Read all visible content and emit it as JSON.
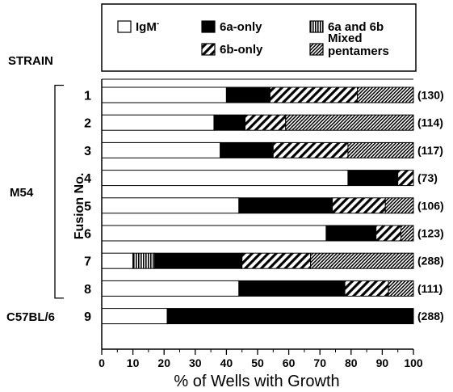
{
  "chart_data": {
    "type": "bar",
    "orientation": "horizontal",
    "stacked": true,
    "title": "",
    "xlabel": "% of Wells with Growth",
    "ylabel": "Fusion No.",
    "xlim": [
      0,
      100
    ],
    "xticks": [
      0,
      10,
      20,
      30,
      40,
      50,
      60,
      70,
      80,
      90,
      100
    ],
    "grid": false,
    "legend_position": "top",
    "strain_header": "STRAIN",
    "groups": [
      {
        "label": "M54",
        "rows": [
          "1",
          "2",
          "3",
          "4",
          "5",
          "6",
          "7",
          "8"
        ]
      },
      {
        "label": "C57BL/6",
        "rows": [
          "9"
        ]
      }
    ],
    "categories": [
      "1",
      "2",
      "3",
      "4",
      "5",
      "6",
      "7",
      "8",
      "9"
    ],
    "counts": [
      "(130)",
      "(114)",
      "(117)",
      "(73)",
      "(106)",
      "(123)",
      "(288)",
      "(111)",
      "(288)"
    ],
    "series": [
      {
        "name": "IgM",
        "superscript": "-",
        "pattern": "white",
        "values": [
          40,
          36,
          38,
          79,
          44,
          72,
          10,
          44,
          21
        ]
      },
      {
        "name": "6a and 6b",
        "pattern": "vertical",
        "values": [
          0,
          0,
          0,
          0,
          0,
          0,
          7,
          0,
          0
        ]
      },
      {
        "name": "6a-only",
        "pattern": "black",
        "values": [
          14,
          10,
          17,
          16,
          30,
          16,
          28,
          34,
          79
        ]
      },
      {
        "name": "6b-only",
        "pattern": "diagonal-wide",
        "values": [
          28,
          13,
          24,
          5,
          17,
          8,
          22,
          14,
          0
        ]
      },
      {
        "name": "Mixed pentamers",
        "pattern": "diagonal-dense",
        "values": [
          18,
          41,
          21,
          0,
          9,
          4,
          33,
          8,
          0
        ]
      }
    ],
    "legend_layout": [
      {
        "series": "IgM",
        "col": 0,
        "row": 0
      },
      {
        "series": "6a-only",
        "col": 1,
        "row": 0
      },
      {
        "series": "6a and 6b",
        "col": 2,
        "row": 0
      },
      {
        "series": "6b-only",
        "col": 1,
        "row": 1
      },
      {
        "series": "Mixed pentamers",
        "col": 2,
        "row": 1
      }
    ]
  }
}
